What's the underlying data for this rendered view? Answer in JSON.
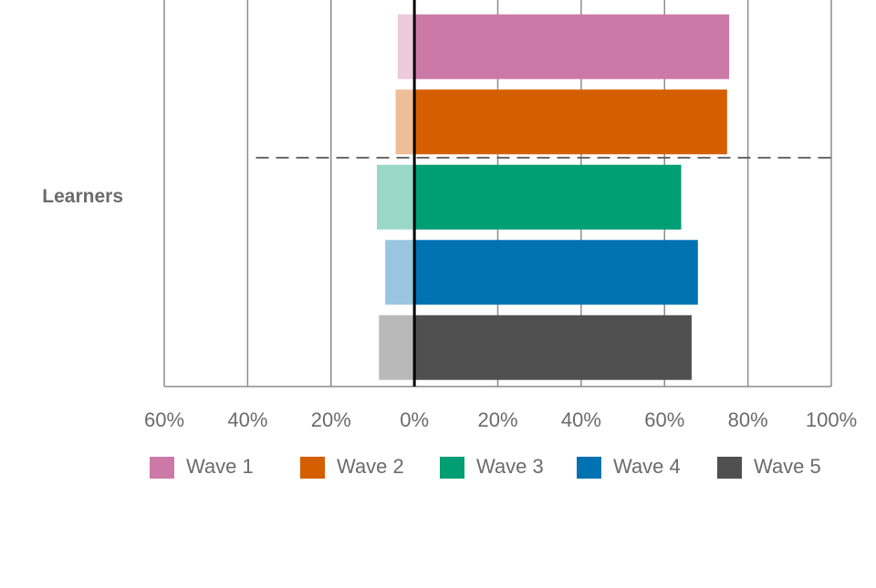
{
  "chart_data": {
    "type": "bar",
    "orientation": "horizontal",
    "stacked": "diverging",
    "category_label": "Learners",
    "xlim": [
      -60,
      100
    ],
    "x_ticks": [
      -60,
      -40,
      -20,
      0,
      20,
      40,
      60,
      80,
      100
    ],
    "x_tick_labels": [
      "60%",
      "40%",
      "20%",
      "0%",
      "20%",
      "40%",
      "60%",
      "80%",
      "100%"
    ],
    "grid": "vertical",
    "legend_position": "bottom",
    "series": [
      {
        "name": "Wave 1",
        "negative": -4,
        "positive": 75.5,
        "color": "#cc79a7",
        "light_color": "#ecc9dc"
      },
      {
        "name": "Wave 2",
        "negative": -4.5,
        "positive": 75,
        "color": "#d55e00",
        "light_color": "#efbd98"
      },
      {
        "name": "Wave 3",
        "negative": -9,
        "positive": 64,
        "color": "#009e73",
        "light_color": "#99d8c6"
      },
      {
        "name": "Wave 4",
        "negative": -7,
        "positive": 68,
        "color": "#0072b2",
        "light_color": "#99c6e0"
      },
      {
        "name": "Wave 5",
        "negative": -8.5,
        "positive": 66.5,
        "color": "#505050",
        "light_color": "#b9b9b9"
      }
    ]
  }
}
